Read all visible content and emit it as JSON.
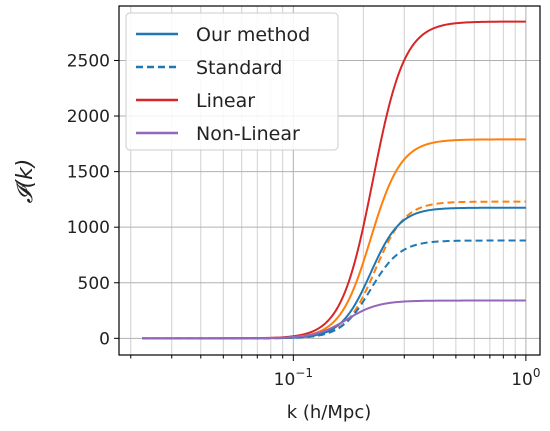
{
  "chart_data": {
    "type": "line",
    "xlabel": "k (h/Mpc)",
    "ylabel": "𝓘(k)",
    "xscale": "log",
    "xlim": [
      0.0178,
      1.15
    ],
    "ylim": [
      -150,
      2990
    ],
    "grid": "on (major and minor)",
    "legend_placement": "top-left",
    "x_tick_labels": [
      {
        "value": 0.1,
        "base": "10",
        "exp": "−1"
      },
      {
        "value": 1,
        "base": "10",
        "exp": "0"
      }
    ],
    "y_ticks": [
      0,
      500,
      1000,
      1500,
      2000,
      2500
    ],
    "y_tick_labels": [
      "0",
      "500",
      "1000",
      "1500",
      "2000",
      "2500"
    ],
    "x_range": [
      0.0224,
      1.0
    ],
    "colors": {
      "blue": "#1f77b4",
      "red": "#d62728",
      "purple": "#9467bd",
      "orange": "#ff7f0e"
    },
    "legend": [
      {
        "label": "Our method",
        "color": "#1f77b4",
        "dash": "solid"
      },
      {
        "label": "Standard",
        "color": "#1f77b4",
        "dash": "dashed"
      },
      {
        "label": "Linear",
        "color": "#d62728",
        "dash": "solid"
      },
      {
        "label": "Non-Linear",
        "color": "#9467bd",
        "dash": "solid"
      }
    ],
    "curves": [
      {
        "color": "#d62728",
        "dash": "solid",
        "plateau": 2850,
        "k_mid": 0.22,
        "width": 0.3
      },
      {
        "color": "#ff7f0e",
        "dash": "solid",
        "plateau": 1790,
        "k_mid": 0.215,
        "width": 0.29
      },
      {
        "color": "#ff7f0e",
        "dash": "dashed",
        "plateau": 1230,
        "k_mid": 0.225,
        "width": 0.28
      },
      {
        "color": "#1f77b4",
        "dash": "solid",
        "plateau": 1175,
        "k_mid": 0.215,
        "width": 0.28
      },
      {
        "color": "#1f77b4",
        "dash": "dashed",
        "plateau": 880,
        "k_mid": 0.215,
        "width": 0.28
      },
      {
        "color": "#9467bd",
        "dash": "solid",
        "plateau": 340,
        "k_mid": 0.17,
        "width": 0.3
      }
    ]
  }
}
